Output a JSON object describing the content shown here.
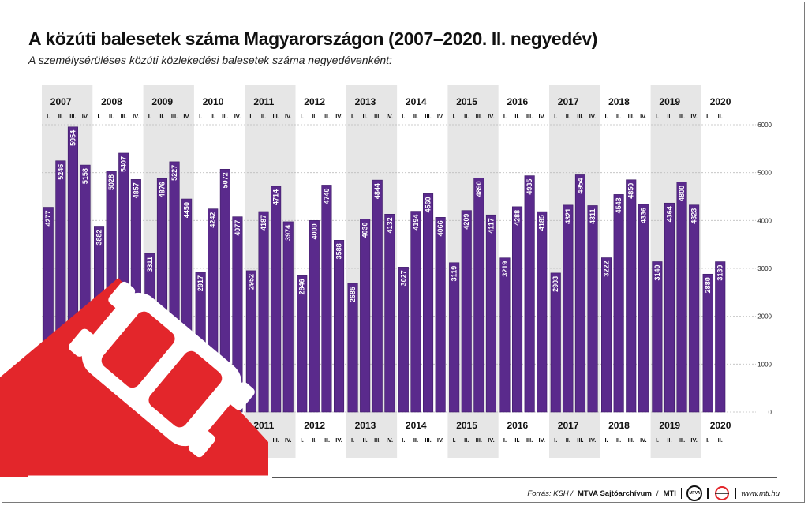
{
  "title": "A közúti balesetek száma Magyarországon (2007–2020. II. negyedév)",
  "subtitle": "A személysérüléses közúti közlekedési balesetek száma negyedévenként:",
  "footer": {
    "source": "Forrás: KSH /",
    "archive": "MTVA Sajtóarchívum",
    "sep": "/",
    "mti": "MTI",
    "logo_text": "MTVA",
    "url": "www.mti.hu"
  },
  "colors": {
    "bar": "#5a2a8c",
    "bar_border": "#3d1a66",
    "band": "#e6e6e6",
    "accent_red": "#e3262b"
  },
  "icons": [
    "overturned-car-icon",
    "mtva-logo-icon",
    "mti-logo-icon"
  ],
  "chart_data": {
    "type": "bar",
    "years": [
      "2007",
      "2008",
      "2009",
      "2010",
      "2011",
      "2012",
      "2013",
      "2014",
      "2015",
      "2016",
      "2017",
      "2018",
      "2019",
      "2020"
    ],
    "quarter_labels": [
      "I.",
      "II.",
      "III.",
      "IV."
    ],
    "values": [
      4277,
      5246,
      5954,
      5158,
      3882,
      5028,
      5407,
      4857,
      3311,
      4876,
      5227,
      4450,
      2917,
      4242,
      5072,
      4077,
      2952,
      4187,
      4714,
      3974,
      2846,
      4000,
      4740,
      3588,
      2685,
      4030,
      4844,
      4132,
      3027,
      4194,
      4560,
      4066,
      3119,
      4209,
      4890,
      4117,
      3219,
      4288,
      4935,
      4185,
      2903,
      4321,
      4954,
      4311,
      3222,
      4543,
      4850,
      4336,
      3140,
      4364,
      4800,
      4323,
      2880,
      3139
    ],
    "ylim": [
      0,
      6000
    ],
    "yticks": [
      "0",
      "1000",
      "2000",
      "3000",
      "4000",
      "5000",
      "6000"
    ],
    "data_labels": true,
    "grid": true,
    "shaded_years": [
      "2007",
      "2009",
      "2011",
      "2013",
      "2015",
      "2017",
      "2019"
    ]
  }
}
